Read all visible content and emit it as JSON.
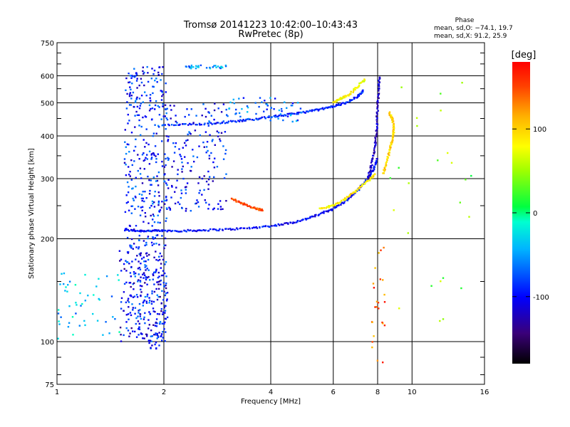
{
  "chart_data": {
    "type": "scatter",
    "title": "Tromsø 20141223 10:42:00–10:43:43",
    "subtitle": "RwPretec (8p)",
    "xlabel": "Frequency [MHz]",
    "ylabel": "Stationary phase Virtual Height [km]",
    "x_scale": "log",
    "y_scale": "log",
    "xlim": [
      1,
      16
    ],
    "ylim": [
      75,
      750
    ],
    "x_ticks": [
      "1",
      "2",
      "4",
      "6",
      "8",
      "10",
      "16"
    ],
    "y_ticks": [
      "75",
      "100",
      "200",
      "300",
      "400",
      "500",
      "600",
      "750"
    ],
    "grid": true,
    "color_variable": "Phase [deg]",
    "colorbar": {
      "label": "[deg]",
      "range": [
        -180,
        180
      ],
      "ticks": [
        "100",
        "0",
        "-100"
      ]
    },
    "stats": {
      "heading": "Phase",
      "lines": [
        "mean, sd,O: −74.1, 19.7",
        "mean, sd,X:  91.2, 25.9"
      ]
    },
    "colors": {
      "blue": "#1a1aff",
      "cyan": "#00c8ff",
      "green": "#40e070",
      "yellow_green": "#c8ff00",
      "orange": "#ff8c00"
    },
    "traces": [
      {
        "name": "",
        "phase": -100,
        "x": [
          1.55,
          1.7,
          1.85,
          2.0,
          2.3,
          2.6,
          3.0,
          3.5,
          4.0,
          4.5,
          5.0,
          5.5,
          6.0,
          6.5,
          7.0,
          7.5,
          7.8,
          8.0
        ],
        "y": [
          212,
          211,
          211,
          211,
          211,
          212,
          213,
          215,
          218,
          222,
          228,
          236,
          245,
          258,
          276,
          300,
          320,
          345
        ]
      },
      {
        "name": "",
        "phase": 90,
        "x": [
          5.5,
          6.0,
          6.5,
          7.0,
          7.5,
          7.9
        ],
        "y": [
          245,
          250,
          262,
          278,
          295,
          310
        ]
      },
      {
        "name": "",
        "phase": 150,
        "x": [
          3.1,
          3.3,
          3.5,
          3.7,
          3.8
        ],
        "y": [
          262,
          255,
          248,
          244,
          242
        ]
      },
      {
        "name": "",
        "phase": -90,
        "x": [
          2.0,
          2.4,
          2.8,
          3.2,
          3.6,
          4.0,
          4.5,
          5.0,
          5.5,
          6.0,
          6.5,
          7.0,
          7.3
        ],
        "y": [
          430,
          432,
          436,
          442,
          448,
          455,
          462,
          470,
          478,
          488,
          500,
          520,
          545
        ]
      },
      {
        "name": "",
        "phase": -120,
        "x": [
          7.5,
          7.7,
          7.85,
          7.95,
          8.0,
          8.05,
          8.1
        ],
        "y": [
          300,
          330,
          370,
          420,
          480,
          540,
          600
        ]
      },
      {
        "name": "",
        "phase": 100,
        "x": [
          8.3,
          8.5,
          8.7,
          8.8,
          8.9,
          8.8,
          8.6
        ],
        "y": [
          310,
          340,
          370,
          390,
          420,
          450,
          470
        ]
      },
      {
        "name": "",
        "phase": 80,
        "x": [
          6.0,
          6.3,
          6.6,
          7.0,
          7.4
        ],
        "y": [
          500,
          515,
          525,
          555,
          590
        ]
      }
    ],
    "clusters": [
      {
        "x_range": [
          1.55,
          2.05
        ],
        "y_range": [
          95,
          640
        ],
        "phase": -90,
        "n": 520
      },
      {
        "x_range": [
          2.05,
          3.0
        ],
        "y_range": [
          240,
          500
        ],
        "phase": -95,
        "n": 170
      },
      {
        "x_range": [
          1.5,
          2.05
        ],
        "y_range": [
          100,
          190
        ],
        "phase": -110,
        "n": 120
      },
      {
        "x_range": [
          1.0,
          1.5
        ],
        "y_range": [
          100,
          160
        ],
        "phase": -40,
        "n": 50
      },
      {
        "x_range": [
          3.0,
          5.0
        ],
        "y_range": [
          440,
          520
        ],
        "phase": -70,
        "n": 60
      },
      {
        "x_range": [
          2.3,
          3.0
        ],
        "y_range": [
          630,
          645
        ],
        "phase": -50,
        "n": 30
      },
      {
        "x_range": [
          7.7,
          8.4
        ],
        "y_range": [
          85,
          200
        ],
        "phase": 140,
        "n": 25
      },
      {
        "x_range": [
          8.5,
          15.0
        ],
        "y_range": [
          100,
          640
        ],
        "phase": 40,
        "n": 25
      }
    ]
  }
}
